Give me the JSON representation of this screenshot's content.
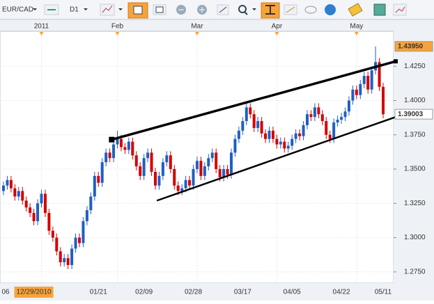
{
  "toolbar": {
    "symbol": "EUR/CAD",
    "timeframe": "D1"
  },
  "chart_data": {
    "type": "candlestick",
    "categories": [
      "06",
      null,
      null,
      null,
      null,
      null,
      null,
      null,
      "12/29/2010",
      null,
      null,
      null,
      null,
      null,
      null,
      null,
      null,
      null,
      null,
      null,
      null,
      null,
      null,
      null,
      null,
      "01/21",
      null,
      null,
      null,
      null,
      null,
      null,
      null,
      null,
      null,
      null,
      null,
      "02/09",
      null,
      null,
      null,
      null,
      null,
      null,
      null,
      null,
      null,
      null,
      null,
      null,
      "02/28",
      null,
      null,
      null,
      null,
      null,
      null,
      null,
      null,
      null,
      null,
      null,
      null,
      "03/17",
      null,
      null,
      null,
      null,
      null,
      null,
      null,
      null,
      null,
      null,
      null,
      null,
      "04/05",
      null,
      null,
      null,
      null,
      null,
      null,
      null,
      null,
      null,
      null,
      null,
      null,
      "04/22",
      null,
      null,
      null,
      null,
      null,
      null,
      null,
      null,
      null,
      null,
      "05/11"
    ],
    "period_labels": [
      null,
      null,
      null,
      null,
      null,
      null,
      null,
      null,
      null,
      null,
      "2011",
      null,
      null,
      null,
      null,
      null,
      null,
      null,
      null,
      null,
      null,
      null,
      null,
      null,
      null,
      null,
      null,
      null,
      null,
      null,
      "Feb",
      null,
      null,
      null,
      null,
      null,
      null,
      null,
      null,
      null,
      null,
      null,
      null,
      null,
      null,
      null,
      null,
      null,
      null,
      null,
      null,
      "Mar",
      null,
      null,
      null,
      null,
      null,
      null,
      null,
      null,
      null,
      null,
      null,
      null,
      null,
      null,
      null,
      null,
      null,
      null,
      null,
      null,
      "Apr",
      null,
      null,
      null,
      null,
      null,
      null,
      null,
      null,
      null,
      null,
      null,
      null,
      null,
      null,
      null,
      null,
      null,
      null,
      null,
      null,
      "May",
      null,
      null,
      null,
      null,
      null
    ],
    "open": [
      1.334,
      1.338,
      1.342,
      1.336,
      1.33,
      1.334,
      1.327,
      1.322,
      1.318,
      1.312,
      1.325,
      1.332,
      1.318,
      1.305,
      1.3,
      1.29,
      1.282,
      1.285,
      1.28,
      1.292,
      1.3,
      1.296,
      1.312,
      1.32,
      1.33,
      1.345,
      1.34,
      1.355,
      1.362,
      1.358,
      1.368,
      1.372,
      1.366,
      1.364,
      1.37,
      1.36,
      1.352,
      1.345,
      1.358,
      1.362,
      1.348,
      1.338,
      1.345,
      1.355,
      1.36,
      1.35,
      1.338,
      1.334,
      1.336,
      1.342,
      1.338,
      1.35,
      1.356,
      1.345,
      1.352,
      1.358,
      1.362,
      1.35,
      1.344,
      1.35,
      1.346,
      1.362,
      1.372,
      1.378,
      1.385,
      1.395,
      1.39,
      1.38,
      1.385,
      1.376,
      1.372,
      1.378,
      1.372,
      1.368,
      1.37,
      1.365,
      1.367,
      1.372,
      1.376,
      1.374,
      1.382,
      1.39,
      1.388,
      1.395,
      1.39,
      1.385,
      1.375,
      1.372,
      1.384,
      1.386,
      1.388,
      1.392,
      1.4,
      1.408,
      1.404,
      1.412,
      1.418,
      1.408,
      1.422,
      1.428,
      1.41
    ],
    "high": [
      1.341,
      1.345,
      1.345,
      1.339,
      1.337,
      1.337,
      1.33,
      1.325,
      1.321,
      1.328,
      1.335,
      1.335,
      1.321,
      1.308,
      1.303,
      1.293,
      1.288,
      1.288,
      1.295,
      1.303,
      1.303,
      1.315,
      1.323,
      1.333,
      1.348,
      1.348,
      1.358,
      1.365,
      1.365,
      1.371,
      1.378,
      1.375,
      1.369,
      1.373,
      1.373,
      1.363,
      1.355,
      1.361,
      1.365,
      1.365,
      1.351,
      1.348,
      1.358,
      1.363,
      1.363,
      1.353,
      1.341,
      1.339,
      1.345,
      1.345,
      1.353,
      1.359,
      1.359,
      1.355,
      1.361,
      1.365,
      1.365,
      1.353,
      1.353,
      1.353,
      1.365,
      1.375,
      1.381,
      1.388,
      1.398,
      1.398,
      1.393,
      1.388,
      1.388,
      1.379,
      1.381,
      1.381,
      1.375,
      1.373,
      1.373,
      1.37,
      1.375,
      1.379,
      1.379,
      1.385,
      1.393,
      1.393,
      1.398,
      1.398,
      1.393,
      1.388,
      1.378,
      1.387,
      1.389,
      1.391,
      1.395,
      1.403,
      1.411,
      1.411,
      1.415,
      1.421,
      1.421,
      1.425,
      1.4395,
      1.431,
      1.413
    ],
    "low": [
      1.331,
      1.335,
      1.333,
      1.327,
      1.327,
      1.324,
      1.319,
      1.315,
      1.309,
      1.309,
      1.322,
      1.315,
      1.302,
      1.297,
      1.287,
      1.279,
      1.279,
      1.277,
      1.277,
      1.289,
      1.293,
      1.293,
      1.309,
      1.317,
      1.327,
      1.337,
      1.337,
      1.352,
      1.355,
      1.355,
      1.365,
      1.363,
      1.361,
      1.361,
      1.357,
      1.349,
      1.342,
      1.342,
      1.355,
      1.345,
      1.335,
      1.335,
      1.342,
      1.352,
      1.347,
      1.335,
      1.331,
      1.331,
      1.333,
      1.335,
      1.335,
      1.347,
      1.342,
      1.342,
      1.349,
      1.355,
      1.347,
      1.341,
      1.341,
      1.343,
      1.343,
      1.359,
      1.369,
      1.375,
      1.382,
      1.387,
      1.377,
      1.377,
      1.373,
      1.369,
      1.369,
      1.369,
      1.365,
      1.365,
      1.362,
      1.362,
      1.364,
      1.369,
      1.371,
      1.371,
      1.379,
      1.385,
      1.385,
      1.387,
      1.382,
      1.372,
      1.369,
      1.369,
      1.381,
      1.383,
      1.385,
      1.389,
      1.397,
      1.401,
      1.401,
      1.409,
      1.405,
      1.405,
      1.419,
      1.407,
      1.387
    ],
    "close": [
      1.338,
      1.342,
      1.336,
      1.33,
      1.334,
      1.327,
      1.322,
      1.318,
      1.312,
      1.325,
      1.332,
      1.318,
      1.305,
      1.3,
      1.29,
      1.282,
      1.285,
      1.28,
      1.292,
      1.3,
      1.296,
      1.312,
      1.32,
      1.33,
      1.345,
      1.34,
      1.355,
      1.362,
      1.358,
      1.368,
      1.372,
      1.366,
      1.364,
      1.37,
      1.36,
      1.352,
      1.345,
      1.358,
      1.362,
      1.348,
      1.338,
      1.345,
      1.355,
      1.36,
      1.35,
      1.338,
      1.334,
      1.336,
      1.342,
      1.338,
      1.35,
      1.356,
      1.345,
      1.352,
      1.358,
      1.362,
      1.35,
      1.344,
      1.35,
      1.346,
      1.362,
      1.372,
      1.378,
      1.385,
      1.395,
      1.39,
      1.38,
      1.385,
      1.376,
      1.372,
      1.378,
      1.372,
      1.368,
      1.37,
      1.365,
      1.367,
      1.372,
      1.376,
      1.374,
      1.382,
      1.39,
      1.388,
      1.395,
      1.39,
      1.385,
      1.375,
      1.372,
      1.384,
      1.386,
      1.388,
      1.392,
      1.4,
      1.408,
      1.404,
      1.412,
      1.418,
      1.408,
      1.422,
      1.428,
      1.41,
      1.39
    ],
    "up_color": "#1f5fc4",
    "down_color": "#d40000",
    "ylim": [
      1.2668,
      1.4505
    ],
    "yticks": [
      {
        "value": 1.275,
        "label": "1.2750"
      },
      {
        "value": 1.3,
        "label": "1.3000"
      },
      {
        "value": 1.325,
        "label": "1.3250"
      },
      {
        "value": 1.35,
        "label": "1.3500"
      },
      {
        "value": 1.375,
        "label": "1.3750"
      },
      {
        "value": 1.4,
        "label": "1.4000"
      },
      {
        "value": 1.425,
        "label": "1.4250"
      }
    ],
    "price_markers": [
      {
        "value": 1.4395,
        "label": "1.43950",
        "color": "#f7a33b"
      },
      {
        "value": 1.39003,
        "label": "1.39003",
        "color": "#ffffff"
      }
    ],
    "trendlines": [
      {
        "x": [
          28.5,
          103.3
        ],
        "y": [
          1.3715,
          1.4286
        ]
      },
      {
        "x": [
          40.4,
          103.3
        ],
        "y": [
          1.327,
          1.388
        ]
      }
    ],
    "grid": true
  }
}
